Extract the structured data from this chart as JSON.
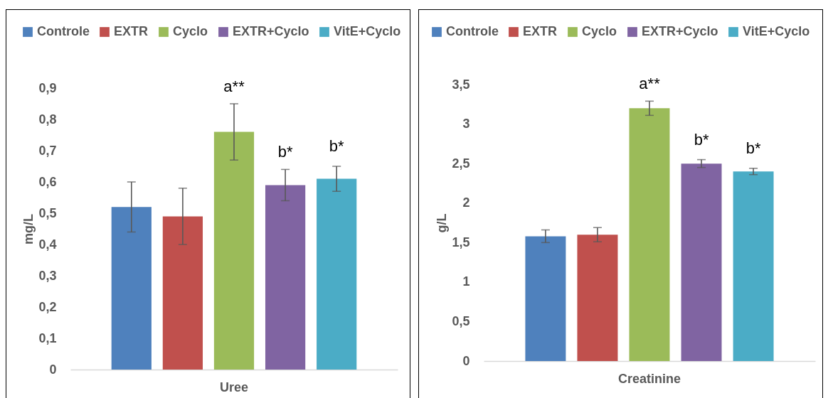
{
  "chart_data": [
    {
      "type": "bar",
      "categories": [
        "Uree"
      ],
      "series": [
        {
          "name": "Controle",
          "color": "#4f81bd",
          "values": [
            0.52
          ],
          "errors": [
            0.08
          ]
        },
        {
          "name": "EXTR",
          "color": "#c0504d",
          "values": [
            0.49
          ],
          "errors": [
            0.09
          ]
        },
        {
          "name": "Cyclo",
          "color": "#9bbb59",
          "values": [
            0.76
          ],
          "errors": [
            0.09
          ]
        },
        {
          "name": "EXTR+Cyclo",
          "color": "#8064a2",
          "values": [
            0.59
          ],
          "errors": [
            0.05
          ]
        },
        {
          "name": "VitE+Cyclo",
          "color": "#4bacc6",
          "values": [
            0.61
          ],
          "errors": [
            0.04
          ]
        }
      ],
      "ylabel": "mg/L",
      "ylim": [
        0,
        0.9
      ],
      "yticks": [
        0,
        {
          "value": 0.1,
          "label": "0,1"
        },
        {
          "value": 0.2,
          "label": "0,2"
        },
        {
          "value": 0.3,
          "label": "0,3"
        },
        {
          "value": 0.4,
          "label": "0,4"
        },
        {
          "value": 0.5,
          "label": "0,5"
        },
        {
          "value": 0.6,
          "label": "0,6"
        },
        {
          "value": 0.7,
          "label": "0,7"
        },
        {
          "value": 0.8,
          "label": "0,8"
        },
        {
          "value": 0.9,
          "label": "0,9"
        }
      ],
      "annotations": [
        "a**",
        "b*",
        "b*"
      ],
      "legend": "top"
    },
    {
      "type": "bar",
      "categories": [
        "Creatinine"
      ],
      "series": [
        {
          "name": "Controle",
          "color": "#4f81bd",
          "values": [
            1.58
          ],
          "errors": [
            0.08
          ]
        },
        {
          "name": "EXTR",
          "color": "#c0504d",
          "values": [
            1.6
          ],
          "errors": [
            0.09
          ]
        },
        {
          "name": "Cyclo",
          "color": "#9bbb59",
          "values": [
            3.2
          ],
          "errors": [
            0.09
          ]
        },
        {
          "name": "EXTR+Cyclo",
          "color": "#8064a2",
          "values": [
            2.5
          ],
          "errors": [
            0.05
          ]
        },
        {
          "name": "VitE+Cyclo",
          "color": "#4bacc6",
          "values": [
            2.4
          ],
          "errors": [
            0.04
          ]
        }
      ],
      "ylabel": "g/L",
      "ylim": [
        0,
        3.5
      ],
      "yticks": [
        0,
        {
          "value": 0.5,
          "label": "0,5"
        },
        1,
        {
          "value": 1.5,
          "label": "1,5"
        },
        2,
        {
          "value": 2.5,
          "label": "2,5"
        },
        3,
        {
          "value": 3.5,
          "label": "3,5"
        }
      ],
      "annotations": [
        "a**",
        "b*",
        "b*"
      ],
      "legend": "top"
    }
  ]
}
